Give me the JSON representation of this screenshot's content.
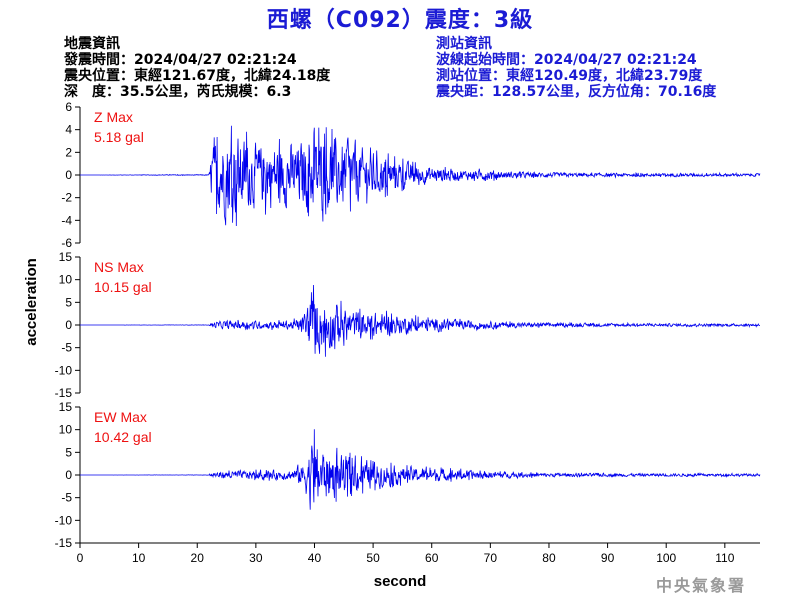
{
  "header": {
    "title": "西螺（C092）震度：3級"
  },
  "quake_info": {
    "lines": [
      "地震資訊",
      "發震時間：2024/04/27 02:21:24",
      "震央位置：東經121.67度，北緯24.18度",
      "深　度：35.5公里，芮氏規模：6.3"
    ]
  },
  "station_info": {
    "lines": [
      "測站資訊",
      "波線起始時間：2024/04/27 02:21:24",
      "測站位置：東經120.49度，北緯23.79度",
      "震央距：128.57公里，反方位角：70.16度"
    ]
  },
  "footer": {
    "agency": "中央氣象署"
  },
  "colors": {
    "trace": "#0000ee",
    "max_label": "#ee1111",
    "title": "#1b1bd4"
  },
  "chart_data": {
    "type": "line",
    "xlabel": "second",
    "ylabel": "acceleration",
    "xlim": [
      0,
      116
    ],
    "xticks": [
      0,
      10,
      20,
      30,
      40,
      50,
      60,
      70,
      80,
      90,
      100,
      110
    ],
    "panels": [
      {
        "name": "Z",
        "max_label": "Z Max",
        "max_value": "5.18 gal",
        "ylim": [
          -6,
          6
        ],
        "yticks": [
          6,
          4,
          2,
          0,
          -2,
          -4,
          -6
        ],
        "envelope": [
          [
            0,
            0
          ],
          [
            22,
            0.05
          ],
          [
            22.5,
            3.2
          ],
          [
            24,
            4.2
          ],
          [
            25.5,
            5.18
          ],
          [
            27,
            4.4
          ],
          [
            30,
            3.4
          ],
          [
            33,
            3.6
          ],
          [
            36,
            3.4
          ],
          [
            38,
            3.8
          ],
          [
            40,
            4.2
          ],
          [
            42,
            4.3
          ],
          [
            44,
            3.9
          ],
          [
            46,
            3.4
          ],
          [
            48,
            3.0
          ],
          [
            50,
            2.6
          ],
          [
            52,
            2.0
          ],
          [
            55,
            1.5
          ],
          [
            58,
            1.0
          ],
          [
            62,
            0.8
          ],
          [
            66,
            0.55
          ],
          [
            70,
            0.6
          ],
          [
            72,
            0.4
          ],
          [
            80,
            0.25
          ],
          [
            90,
            0.2
          ],
          [
            100,
            0.18
          ],
          [
            110,
            0.16
          ],
          [
            116,
            0.15
          ]
        ]
      },
      {
        "name": "NS",
        "max_label": "NS Max",
        "max_value": "10.15 gal",
        "ylim": [
          -15,
          15
        ],
        "yticks": [
          15,
          10,
          5,
          0,
          -5,
          -10,
          -15
        ],
        "envelope": [
          [
            0,
            0
          ],
          [
            22,
            0.05
          ],
          [
            22.5,
            0.8
          ],
          [
            25,
            1.2
          ],
          [
            30,
            1.0
          ],
          [
            36,
            1.2
          ],
          [
            38,
            2.5
          ],
          [
            39,
            6.5
          ],
          [
            40,
            10.15
          ],
          [
            41,
            7.5
          ],
          [
            43,
            6.5
          ],
          [
            45,
            5.0
          ],
          [
            47,
            4.0
          ],
          [
            50,
            3.5
          ],
          [
            52,
            3.2
          ],
          [
            55,
            2.5
          ],
          [
            60,
            1.8
          ],
          [
            65,
            1.4
          ],
          [
            70,
            1.0
          ],
          [
            75,
            0.7
          ],
          [
            80,
            0.55
          ],
          [
            90,
            0.45
          ],
          [
            100,
            0.4
          ],
          [
            116,
            0.35
          ]
        ]
      },
      {
        "name": "EW",
        "max_label": "EW Max",
        "max_value": "10.42 gal",
        "ylim": [
          -15,
          15
        ],
        "yticks": [
          15,
          10,
          5,
          0,
          -5,
          -10,
          -15
        ],
        "envelope": [
          [
            0,
            0
          ],
          [
            22,
            0.05
          ],
          [
            22.5,
            0.8
          ],
          [
            25,
            1.1
          ],
          [
            30,
            1.2
          ],
          [
            36,
            1.4
          ],
          [
            38,
            3.5
          ],
          [
            39,
            7.0
          ],
          [
            40,
            10.42
          ],
          [
            41,
            8.0
          ],
          [
            43,
            6.5
          ],
          [
            45,
            5.5
          ],
          [
            47,
            4.5
          ],
          [
            50,
            3.6
          ],
          [
            52,
            3.2
          ],
          [
            55,
            2.4
          ],
          [
            60,
            1.8
          ],
          [
            65,
            1.4
          ],
          [
            70,
            1.0
          ],
          [
            75,
            0.7
          ],
          [
            80,
            0.55
          ],
          [
            90,
            0.45
          ],
          [
            100,
            0.4
          ],
          [
            116,
            0.35
          ]
        ]
      }
    ]
  }
}
